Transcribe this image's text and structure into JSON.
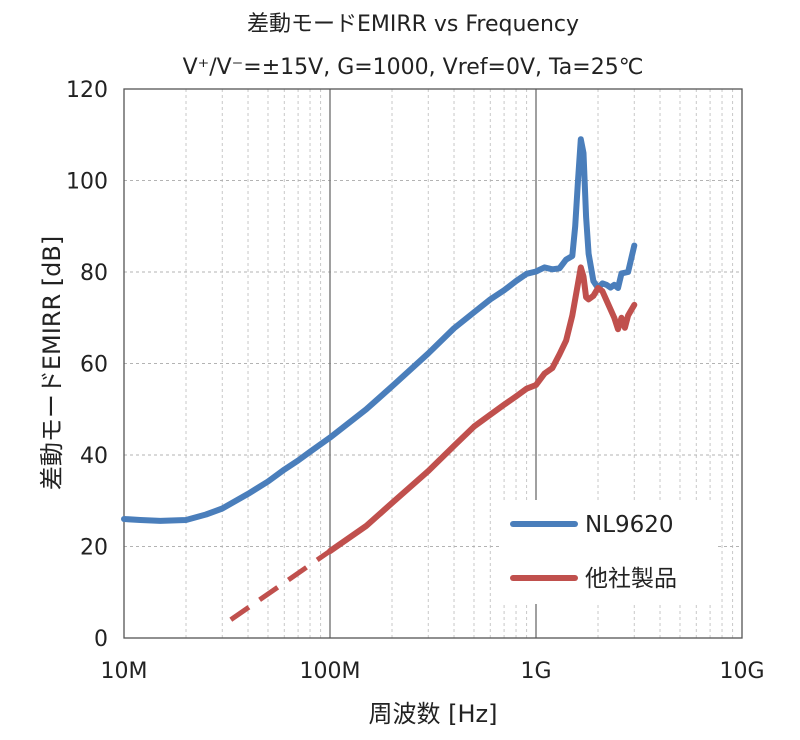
{
  "chart_data": {
    "type": "line",
    "title": "差動モードEMIRR vs Frequency",
    "subtitle": "V⁺/V⁻=±15V, G=1000, Vref=0V, Ta=25℃",
    "xlabel": "周波数 [Hz]",
    "ylabel": "差動モードEMIRR [dB]",
    "x_scale": "log",
    "xlim": [
      10000000,
      10000000000
    ],
    "ylim": [
      0,
      120
    ],
    "x_ticks": [
      {
        "value": 10000000,
        "label": "10M"
      },
      {
        "value": 100000000,
        "label": "100M"
      },
      {
        "value": 1000000000,
        "label": "1G"
      },
      {
        "value": 10000000000,
        "label": "10G"
      }
    ],
    "y_ticks": [
      0,
      20,
      40,
      60,
      80,
      100,
      120
    ],
    "grid": true,
    "legend_position": "bottom-right",
    "series": [
      {
        "name": "NL9620",
        "color": "#4a7ebb",
        "points": [
          [
            10000000,
            26
          ],
          [
            12000000,
            25.8
          ],
          [
            15000000,
            25.6
          ],
          [
            20000000,
            25.8
          ],
          [
            25000000,
            27
          ],
          [
            30000000,
            28.3
          ],
          [
            40000000,
            31.5
          ],
          [
            50000000,
            34.2
          ],
          [
            60000000,
            36.8
          ],
          [
            70000000,
            38.8
          ],
          [
            80000000,
            40.7
          ],
          [
            100000000,
            43.8
          ],
          [
            150000000,
            50
          ],
          [
            200000000,
            55
          ],
          [
            300000000,
            62.2
          ],
          [
            400000000,
            67.7
          ],
          [
            500000000,
            71.2
          ],
          [
            600000000,
            74
          ],
          [
            700000000,
            76
          ],
          [
            800000000,
            78
          ],
          [
            900000000,
            79.6
          ],
          [
            1000000000,
            80.1
          ],
          [
            1100000000,
            81
          ],
          [
            1200000000,
            80.6
          ],
          [
            1300000000,
            80.8
          ],
          [
            1400000000,
            82.7
          ],
          [
            1500000000,
            83.5
          ],
          [
            1550000000,
            90
          ],
          [
            1600000000,
            100
          ],
          [
            1650000000,
            109
          ],
          [
            1700000000,
            106
          ],
          [
            1750000000,
            92
          ],
          [
            1800000000,
            84
          ],
          [
            1900000000,
            78
          ],
          [
            2000000000,
            76.5
          ],
          [
            2100000000,
            77.5
          ],
          [
            2200000000,
            77.2
          ],
          [
            2300000000,
            76.6
          ],
          [
            2400000000,
            77.2
          ],
          [
            2500000000,
            76.5
          ],
          [
            2600000000,
            79.7
          ],
          [
            2800000000,
            80
          ],
          [
            3000000000,
            85.8
          ]
        ]
      },
      {
        "name": "他社製品",
        "color": "#c0504d",
        "points": [
          [
            100000000,
            19
          ],
          [
            150000000,
            24.5
          ],
          [
            200000000,
            29.5
          ],
          [
            300000000,
            36.5
          ],
          [
            400000000,
            42
          ],
          [
            500000000,
            46.2
          ],
          [
            600000000,
            48.8
          ],
          [
            700000000,
            51
          ],
          [
            800000000,
            52.8
          ],
          [
            900000000,
            54.5
          ],
          [
            1000000000,
            55.3
          ],
          [
            1100000000,
            57.8
          ],
          [
            1200000000,
            59
          ],
          [
            1300000000,
            62
          ],
          [
            1400000000,
            65
          ],
          [
            1500000000,
            70.5
          ],
          [
            1600000000,
            77.5
          ],
          [
            1650000000,
            81
          ],
          [
            1700000000,
            79
          ],
          [
            1750000000,
            74.5
          ],
          [
            1800000000,
            74
          ],
          [
            1900000000,
            74.8
          ],
          [
            2000000000,
            76.5
          ],
          [
            2100000000,
            75.8
          ],
          [
            2200000000,
            73.8
          ],
          [
            2400000000,
            70
          ],
          [
            2500000000,
            67.5
          ],
          [
            2600000000,
            70
          ],
          [
            2700000000,
            67.8
          ],
          [
            2800000000,
            70.5
          ],
          [
            3000000000,
            72.8
          ]
        ],
        "extrapolated_points": [
          [
            33000000,
            4
          ],
          [
            100000000,
            19
          ]
        ]
      }
    ]
  }
}
